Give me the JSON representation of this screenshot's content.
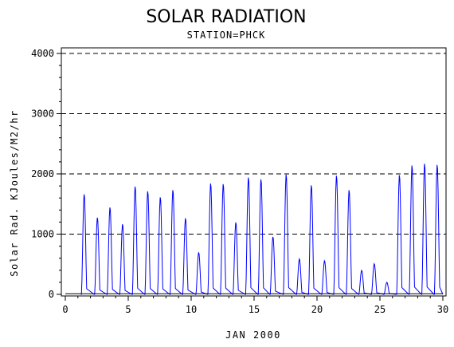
{
  "chart_data": {
    "type": "line",
    "title": "SOLAR RADIATION",
    "subtitle": "STATION=PHCK",
    "xlabel": "JAN 2000",
    "ylabel": "Solar Rad. KJoules/M2/hr",
    "xlim": [
      0,
      30
    ],
    "ylim": [
      0,
      4000
    ],
    "x_ticks": [
      0,
      5,
      10,
      15,
      20,
      25,
      30
    ],
    "y_ticks": [
      0,
      1000,
      2000,
      3000,
      4000
    ],
    "grid": "horizontal-dashed",
    "series": [
      {
        "color": "#0000ff",
        "daily_peaks": [
          {
            "day": 1.5,
            "value": 1670
          },
          {
            "day": 2.55,
            "value": 1280
          },
          {
            "day": 3.55,
            "value": 1450
          },
          {
            "day": 4.55,
            "value": 1170
          },
          {
            "day": 5.55,
            "value": 1800
          },
          {
            "day": 6.55,
            "value": 1720
          },
          {
            "day": 7.55,
            "value": 1620
          },
          {
            "day": 8.55,
            "value": 1740
          },
          {
            "day": 9.55,
            "value": 1270
          },
          {
            "day": 10.6,
            "value": 700
          },
          {
            "day": 11.55,
            "value": 1850
          },
          {
            "day": 12.55,
            "value": 1840
          },
          {
            "day": 13.55,
            "value": 1200
          },
          {
            "day": 14.55,
            "value": 1950
          },
          {
            "day": 15.55,
            "value": 1920
          },
          {
            "day": 16.5,
            "value": 960
          },
          {
            "day": 17.55,
            "value": 2000
          },
          {
            "day": 18.6,
            "value": 590
          },
          {
            "day": 19.55,
            "value": 1820
          },
          {
            "day": 20.6,
            "value": 560
          },
          {
            "day": 21.55,
            "value": 1980
          },
          {
            "day": 22.55,
            "value": 1740
          },
          {
            "day": 23.55,
            "value": 400
          },
          {
            "day": 24.55,
            "value": 510
          },
          {
            "day": 25.55,
            "value": 200
          },
          {
            "day": 26.55,
            "value": 1990
          },
          {
            "day": 27.55,
            "value": 2150
          },
          {
            "day": 28.55,
            "value": 2180
          },
          {
            "day": 29.55,
            "value": 2160
          }
        ]
      },
      {
        "color": "#000000",
        "level": 10
      }
    ]
  }
}
